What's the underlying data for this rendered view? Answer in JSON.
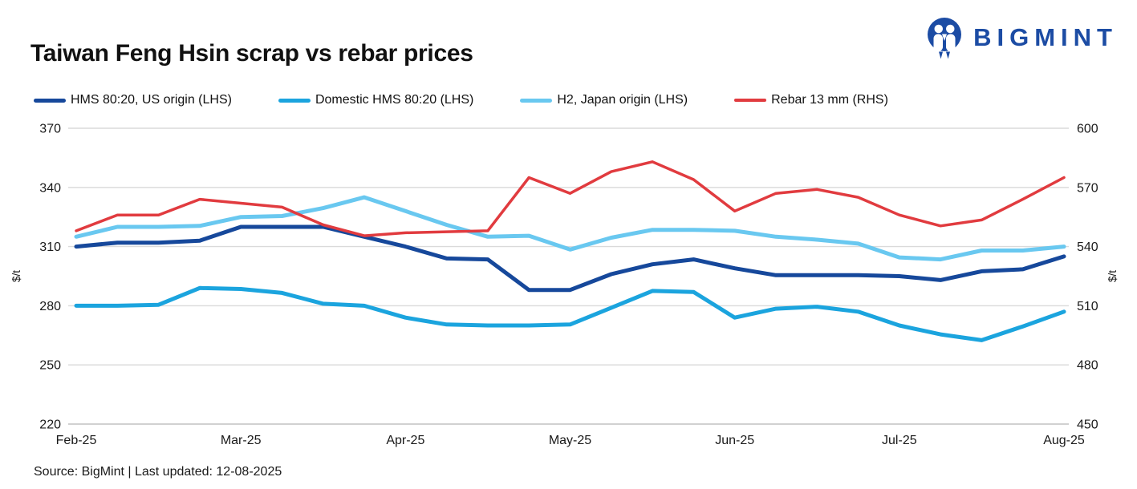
{
  "header": {
    "title": "Taiwan Feng Hsin scrap vs rebar prices",
    "logo_text": "BIGMINT"
  },
  "footer": {
    "source": "Source: BigMint |  Last updated: 12-08-2025"
  },
  "colors": {
    "hms_us": "#16489B",
    "domestic_hms": "#1BA4DE",
    "h2_japan": "#69C8F0",
    "rebar": "#E13B3F",
    "logo_blue": "#1C4CA4",
    "gridline": "#DADADA",
    "axis_bottom_line": "#C2C2C2",
    "text": "#1A1A1A"
  },
  "chart_data": {
    "type": "line",
    "title": "Taiwan Feng Hsin scrap vs rebar prices",
    "legend_position": "top",
    "grid": "horizontal-only",
    "x_labels": [
      "Feb-25",
      "Mar-25",
      "Apr-25",
      "May-25",
      "Jun-25",
      "Jul-25",
      "Aug-25"
    ],
    "axes": {
      "left": {
        "label": "$/t",
        "ticks": [
          370,
          340,
          310,
          280,
          250,
          220
        ],
        "range": [
          220,
          370
        ]
      },
      "right": {
        "label": "$/t",
        "ticks": [
          600,
          570,
          540,
          510,
          480,
          450
        ],
        "range": [
          450,
          600
        ]
      }
    },
    "series": [
      {
        "name": "HMS 80:20, US origin (LHS)",
        "axis": "left",
        "color": "#16489B",
        "width": 5,
        "values": [
          310,
          312,
          312,
          313,
          320,
          320,
          320,
          315,
          310,
          304,
          303.5,
          288,
          288,
          296,
          301,
          303.5,
          299,
          295.5,
          295.5,
          295.5,
          295,
          293,
          297.5,
          298.5,
          305
        ]
      },
      {
        "name": "Domestic HMS 80:20 (LHS)",
        "axis": "left",
        "color": "#1BA4DE",
        "width": 5,
        "values": [
          280,
          280,
          280.5,
          289,
          288.5,
          286.5,
          281,
          280,
          274,
          270.5,
          270,
          270,
          270.5,
          279,
          287.5,
          287,
          274,
          278.5,
          279.5,
          277,
          270,
          265.5,
          262.5,
          269.5,
          277
        ]
      },
      {
        "name": "H2, Japan origin (LHS)",
        "axis": "left",
        "color": "#69C8F0",
        "width": 5,
        "values": [
          315,
          320,
          320,
          320.5,
          325,
          325.5,
          329.5,
          335,
          328,
          321,
          315,
          315.5,
          308.5,
          314.5,
          318.5,
          318.5,
          318,
          315,
          313.5,
          311.5,
          304.5,
          303.5,
          308,
          308,
          310
        ]
      },
      {
        "name": "Rebar 13 mm (RHS)",
        "axis": "right",
        "color": "#E13B3F",
        "width": 3.5,
        "values": [
          548,
          556,
          556,
          564,
          562,
          560,
          551,
          545.5,
          547,
          547.5,
          548,
          575,
          567,
          578,
          583,
          574,
          558,
          567,
          569,
          565,
          556,
          550.5,
          553.5,
          564,
          575
        ]
      }
    ]
  }
}
